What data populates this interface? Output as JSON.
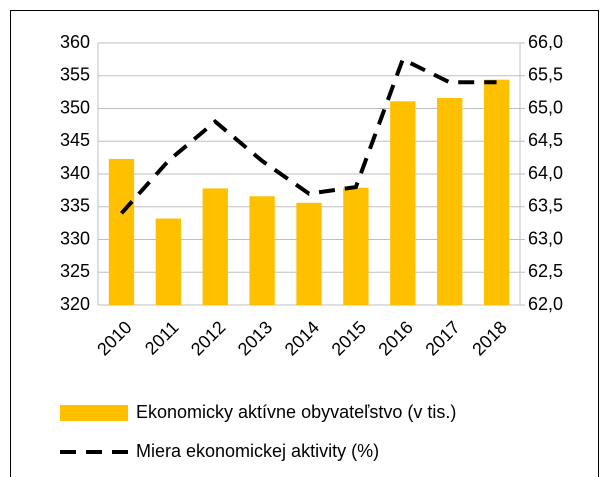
{
  "chart_data": {
    "type": "bar",
    "categories": [
      "2010",
      "2011",
      "2012",
      "2013",
      "2014",
      "2015",
      "2016",
      "2017",
      "2018"
    ],
    "series": [
      {
        "name": "Ekonomicky aktívne obyvateľstvo (v tis.)",
        "color": "#ffc000",
        "type": "bar",
        "values": [
          342.3,
          333.2,
          337.8,
          336.6,
          335.6,
          337.9,
          351.1,
          351.6,
          354.4
        ]
      },
      {
        "name": "Miera ekonomickej aktivity (%)",
        "color": "#000000",
        "type": "line",
        "axis": "y2",
        "values": [
          63.4,
          64.2,
          64.8,
          64.2,
          63.7,
          63.8,
          65.75,
          65.4,
          65.4
        ]
      }
    ],
    "ylim": [
      320,
      360
    ],
    "yticks": [
      320,
      325,
      330,
      335,
      340,
      345,
      350,
      355,
      360
    ],
    "y2lim": [
      62,
      66
    ],
    "y2ticks": [
      {
        "value": 62,
        "label": "62,0"
      },
      {
        "value": 62.5,
        "label": "62,5"
      },
      {
        "value": 63,
        "label": "63,0"
      },
      {
        "value": 63.5,
        "label": "63,5"
      },
      {
        "value": 64,
        "label": "64,0"
      },
      {
        "value": 64.5,
        "label": "64,5"
      },
      {
        "value": 65,
        "label": "65,0"
      },
      {
        "value": 65.5,
        "label": "65,5"
      },
      {
        "value": 66,
        "label": "66,0"
      }
    ],
    "grid": true,
    "legend": "bottom"
  }
}
